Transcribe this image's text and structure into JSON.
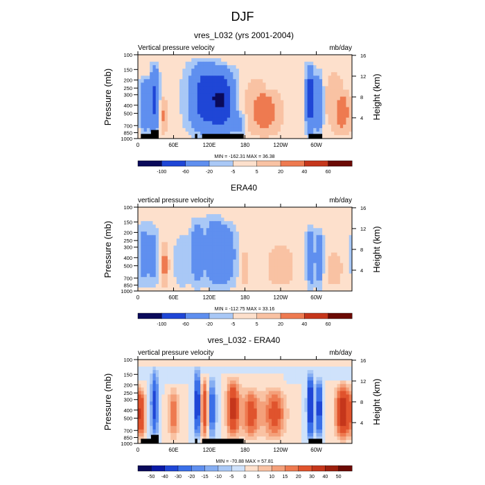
{
  "figure_title": "DJF",
  "colors": {
    "diverging_scale": [
      "#0a0a5a",
      "#0b1aa6",
      "#1f46d6",
      "#3a6fe8",
      "#5f8fef",
      "#86aef2",
      "#a9c8f6",
      "#cfe2fb",
      "#fde0cc",
      "#f9c2a3",
      "#f4a07a",
      "#ee7a50",
      "#e0532d",
      "#c5361b",
      "#9c1f0d",
      "#6b0a04"
    ],
    "frame": "#000000"
  },
  "chart_data": [
    {
      "type": "heatmap",
      "title": "vres_L032 (yrs 2001-2004)",
      "left_string": "Vertical pressure velocity",
      "right_string": "mb/day",
      "xlabel": "",
      "ylabel": "Pressure (mb)",
      "ylabel_right": "Height (km)",
      "x_ticks": [
        "0",
        "60E",
        "120E",
        "180",
        "120W",
        "60W"
      ],
      "x_tick_values": [
        0,
        60,
        120,
        180,
        240,
        300
      ],
      "xlim": [
        0,
        360
      ],
      "y_scale": "log",
      "y_ticks": [
        "100",
        "150",
        "200",
        "250",
        "300",
        "400",
        "500",
        "700",
        "850",
        "1000"
      ],
      "y_tick_values": [
        100,
        150,
        200,
        250,
        300,
        400,
        500,
        700,
        850,
        1000
      ],
      "ylim": [
        1000,
        100
      ],
      "right_ticks": [
        "4",
        "8",
        "12",
        "16"
      ],
      "right_tick_values": [
        4,
        8,
        12,
        16
      ],
      "stats": "MIN = -162.31  MAX = 36.38",
      "colorbar_levels": [
        "-100",
        "-60",
        "-20",
        "-5",
        "5",
        "20",
        "40",
        "60"
      ],
      "colorbar_level_values": [
        -100,
        -60,
        -20,
        -5,
        5,
        20,
        40,
        60
      ],
      "bottom_mask": true,
      "features": [
        {
          "lon": 12,
          "p_top": 170,
          "amp": -55,
          "width": 9
        },
        {
          "lon": 28,
          "p_top": 120,
          "amp": -70,
          "width": 7
        },
        {
          "lon": 42,
          "p_top": 300,
          "amp": 22,
          "width": 6
        },
        {
          "lon": 115,
          "p_top": 110,
          "amp": -90,
          "width": 26
        },
        {
          "lon": 145,
          "p_top": 130,
          "amp": -75,
          "width": 18
        },
        {
          "lon": 170,
          "p_top": 450,
          "amp": -25,
          "width": 10
        },
        {
          "lon": 215,
          "p_top": 250,
          "amp": 28,
          "width": 22
        },
        {
          "lon": 200,
          "p_top": 150,
          "amp": 10,
          "width": 25
        },
        {
          "lon": 290,
          "p_top": 120,
          "amp": -95,
          "width": 7
        },
        {
          "lon": 305,
          "p_top": 150,
          "amp": -60,
          "width": 6
        },
        {
          "lon": 345,
          "p_top": 250,
          "amp": 25,
          "width": 14
        },
        {
          "lon": 330,
          "p_top": 110,
          "amp": 8,
          "width": 25
        }
      ]
    },
    {
      "type": "heatmap",
      "title": "ERA40",
      "left_string": "vertical pressure velocity",
      "right_string": "mb/day",
      "xlabel": "",
      "ylabel": "Pressure (mb)",
      "ylabel_right": "Height (km)",
      "x_ticks": [
        "0",
        "60E",
        "120E",
        "180",
        "120W",
        "60W"
      ],
      "x_tick_values": [
        0,
        60,
        120,
        180,
        240,
        300
      ],
      "xlim": [
        0,
        360
      ],
      "y_scale": "log",
      "y_ticks": [
        "100",
        "150",
        "200",
        "250",
        "300",
        "400",
        "500",
        "700",
        "850",
        "1000"
      ],
      "y_tick_values": [
        100,
        150,
        200,
        250,
        300,
        400,
        500,
        700,
        850,
        1000
      ],
      "ylim": [
        1000,
        100
      ],
      "right_ticks": [
        "4",
        "8",
        "12",
        "16"
      ],
      "right_tick_values": [
        4,
        8,
        12,
        16
      ],
      "stats": "MIN = -112.75  MAX = 33.16",
      "colorbar_levels": [
        "-100",
        "-60",
        "-20",
        "-5",
        "5",
        "20",
        "40",
        "60"
      ],
      "colorbar_level_values": [
        -100,
        -60,
        -20,
        -5,
        5,
        20,
        40,
        60
      ],
      "bottom_mask": false,
      "features": [
        {
          "lon": 10,
          "p_top": 140,
          "amp": -35,
          "width": 10
        },
        {
          "lon": 26,
          "p_top": 150,
          "amp": -30,
          "width": 8
        },
        {
          "lon": 45,
          "p_top": 250,
          "amp": 28,
          "width": 6
        },
        {
          "lon": 75,
          "p_top": 200,
          "amp": -20,
          "width": 12
        },
        {
          "lon": 100,
          "p_top": 130,
          "amp": -50,
          "width": 10
        },
        {
          "lon": 128,
          "p_top": 120,
          "amp": -55,
          "width": 14
        },
        {
          "lon": 150,
          "p_top": 140,
          "amp": -45,
          "width": 14
        },
        {
          "lon": 180,
          "p_top": 300,
          "amp": 12,
          "width": 8
        },
        {
          "lon": 240,
          "p_top": 250,
          "amp": 14,
          "width": 22
        },
        {
          "lon": 290,
          "p_top": 160,
          "amp": -55,
          "width": 6
        },
        {
          "lon": 305,
          "p_top": 170,
          "amp": -45,
          "width": 6
        },
        {
          "lon": 330,
          "p_top": 300,
          "amp": 12,
          "width": 14
        }
      ]
    },
    {
      "type": "heatmap",
      "title": "vres_L032 - ERA40",
      "left_string": "vertical pressure velocity",
      "right_string": "mb/day",
      "xlabel": "",
      "ylabel": "Pressure (mb)",
      "ylabel_right": "Height (km)",
      "x_ticks": [
        "0",
        "60E",
        "120E",
        "180",
        "120W",
        "60W"
      ],
      "x_tick_values": [
        0,
        60,
        120,
        180,
        240,
        300
      ],
      "xlim": [
        0,
        360
      ],
      "y_scale": "log",
      "y_ticks": [
        "100",
        "150",
        "200",
        "250",
        "300",
        "400",
        "500",
        "700",
        "850",
        "1000"
      ],
      "y_tick_values": [
        100,
        150,
        200,
        250,
        300,
        400,
        500,
        700,
        850,
        1000
      ],
      "ylim": [
        1000,
        100
      ],
      "right_ticks": [
        "4",
        "8",
        "12",
        "16"
      ],
      "right_tick_values": [
        4,
        8,
        12,
        16
      ],
      "stats": "MIN = -70.88  MAX = 57.81",
      "colorbar_levels": [
        "-50",
        "-40",
        "-30",
        "-20",
        "-15",
        "-10",
        "-5",
        "0",
        "5",
        "10",
        "15",
        "20",
        "30",
        "40",
        "50"
      ],
      "colorbar_level_values": [
        -50,
        -40,
        -30,
        -20,
        -15,
        -10,
        -5,
        0,
        5,
        10,
        15,
        20,
        30,
        40,
        50
      ],
      "bottom_mask": true,
      "features": [
        {
          "lon": 5,
          "p_top": 200,
          "amp": 30,
          "width": 7
        },
        {
          "lon": 28,
          "p_top": 120,
          "amp": -35,
          "width": 6
        },
        {
          "lon": 60,
          "p_top": 200,
          "amp": 20,
          "width": 8
        },
        {
          "lon": 100,
          "p_top": 120,
          "amp": -45,
          "width": 5
        },
        {
          "lon": 112,
          "p_top": 150,
          "amp": 30,
          "width": 6
        },
        {
          "lon": 125,
          "p_top": 150,
          "amp": -30,
          "width": 6
        },
        {
          "lon": 160,
          "p_top": 150,
          "amp": 35,
          "width": 10
        },
        {
          "lon": 190,
          "p_top": 200,
          "amp": 25,
          "width": 15
        },
        {
          "lon": 230,
          "p_top": 200,
          "amp": 25,
          "width": 18
        },
        {
          "lon": 290,
          "p_top": 130,
          "amp": -50,
          "width": 5
        },
        {
          "lon": 305,
          "p_top": 150,
          "amp": -40,
          "width": 5
        },
        {
          "lon": 345,
          "p_top": 180,
          "amp": 40,
          "width": 12
        }
      ]
    }
  ]
}
